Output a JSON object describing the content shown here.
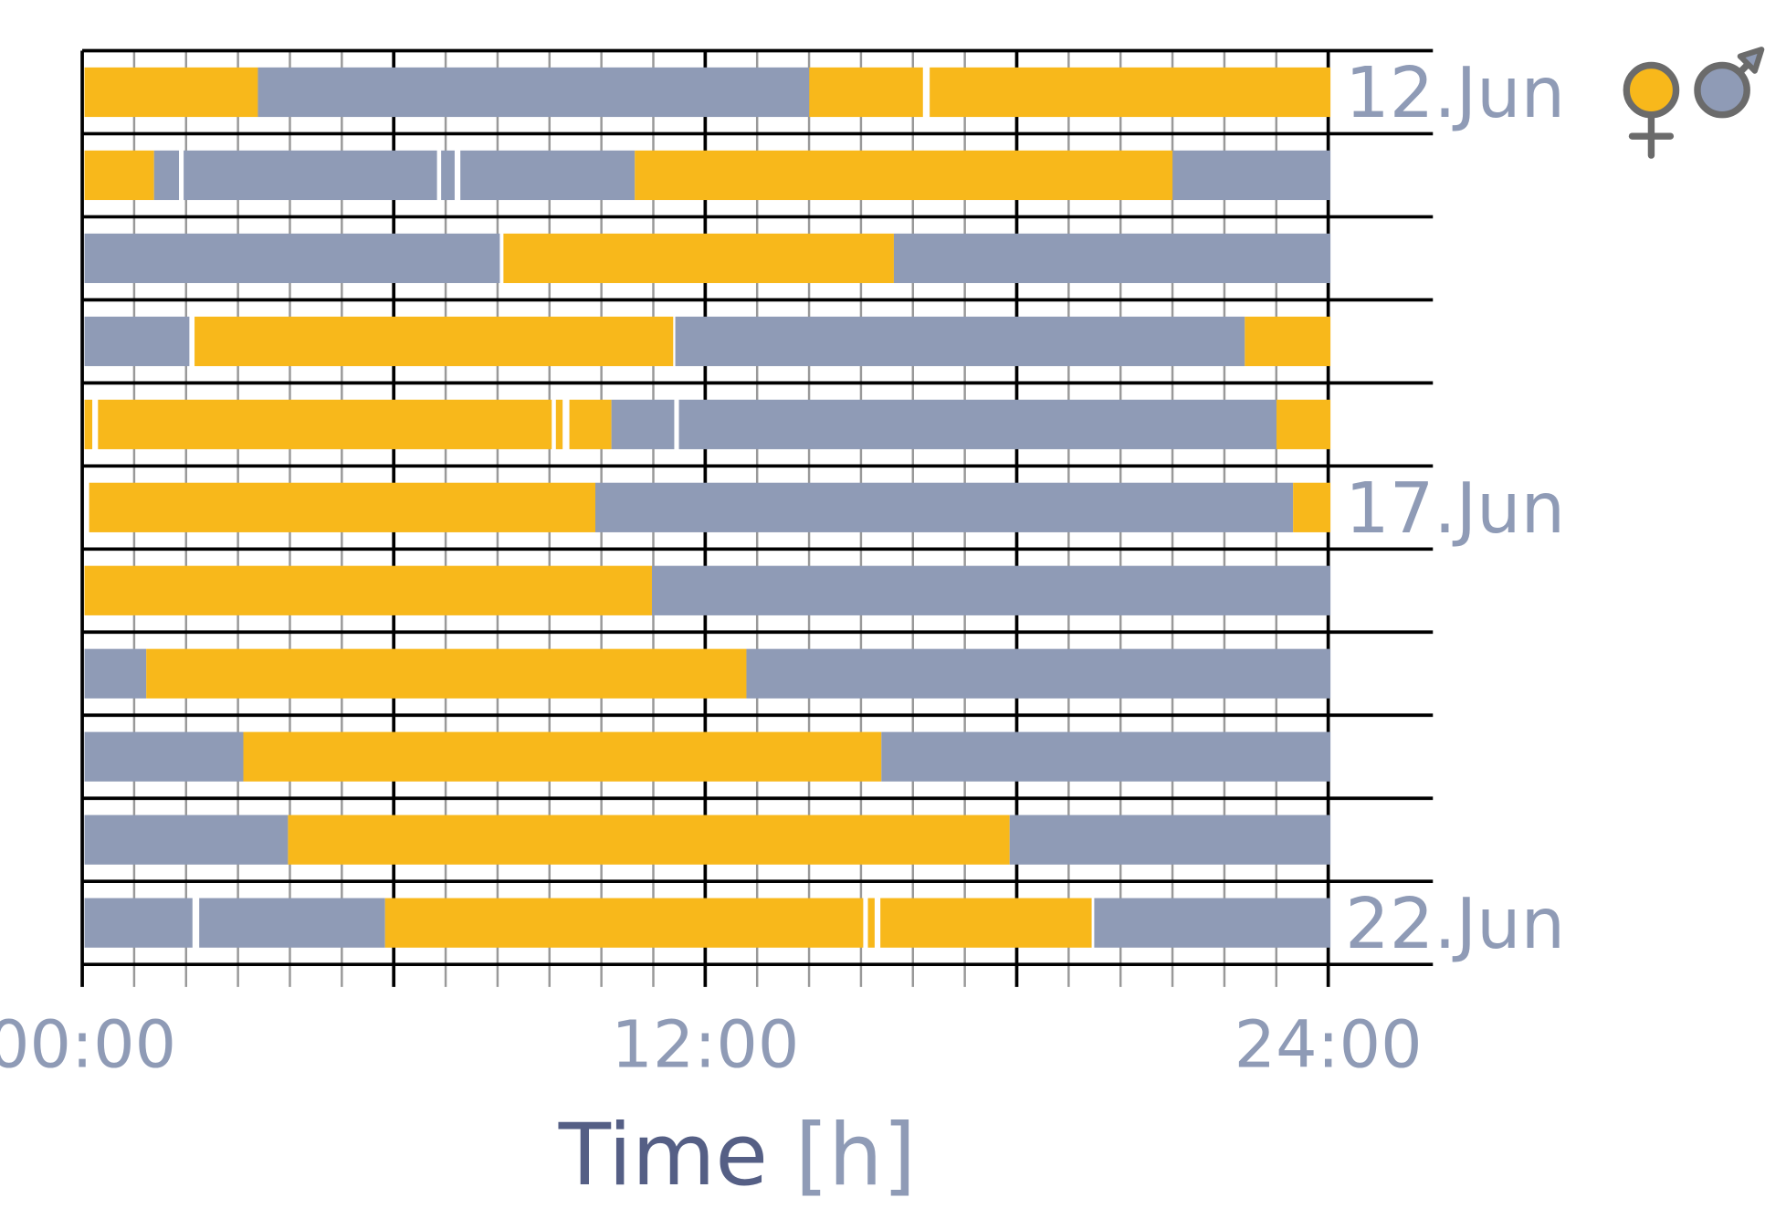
{
  "chart_data": {
    "type": "timeline",
    "xlabel_main": "Time",
    "xlabel_unit": "[h]",
    "xlim": [
      0,
      24
    ],
    "x_tick_labels": [
      {
        "value": 0,
        "label": "00:00"
      },
      {
        "value": 12,
        "label": "12:00"
      },
      {
        "value": 24,
        "label": "24:00"
      }
    ],
    "grid": {
      "minor_every_h": 1,
      "major_every_h": 6
    },
    "colors": {
      "female": "#F8B81B",
      "male": "#8F9BB6",
      "label": "#8F9BB6",
      "title": "#555F85"
    },
    "legend": {
      "placement": "top-right",
      "entries": [
        {
          "key": "female",
          "icon": "female-symbol-icon"
        },
        {
          "key": "male",
          "icon": "male-symbol-icon"
        }
      ]
    },
    "rows": [
      {
        "label": "12.Jun",
        "segments": [
          [
            "female",
            0,
            3.34
          ],
          [
            "male",
            3.34,
            13.96
          ],
          [
            "female",
            13.96,
            16.15
          ],
          [
            "female",
            16.28,
            24
          ]
        ]
      },
      {
        "label": "",
        "segments": [
          [
            "female",
            0,
            1.34
          ],
          [
            "male",
            1.34,
            1.82
          ],
          [
            "male",
            1.91,
            6.79
          ],
          [
            "male",
            6.87,
            7.13
          ],
          [
            "male",
            7.24,
            10.6
          ],
          [
            "female",
            10.6,
            20.96
          ],
          [
            "male",
            20.96,
            24
          ]
        ]
      },
      {
        "label": "",
        "segments": [
          [
            "male",
            0,
            8.0
          ],
          [
            "female",
            8.07,
            15.59
          ],
          [
            "male",
            15.59,
            24
          ]
        ]
      },
      {
        "label": "",
        "segments": [
          [
            "male",
            0,
            2.02
          ],
          [
            "female",
            2.12,
            11.34
          ],
          [
            "male",
            11.38,
            22.35
          ],
          [
            "female",
            22.35,
            24
          ]
        ]
      },
      {
        "label": "",
        "segments": [
          [
            "female",
            0,
            0.15
          ],
          [
            "female",
            0.26,
            9.0
          ],
          [
            "female",
            9.08,
            9.21
          ],
          [
            "female",
            9.34,
            10.15
          ],
          [
            "male",
            10.15,
            11.36
          ],
          [
            "male",
            11.45,
            22.96
          ],
          [
            "female",
            22.96,
            24
          ]
        ]
      },
      {
        "label": "17.Jun",
        "segments": [
          [
            "female",
            0.09,
            9.84
          ],
          [
            "male",
            9.84,
            23.28
          ],
          [
            "female",
            23.28,
            24
          ]
        ]
      },
      {
        "label": "",
        "segments": [
          [
            "female",
            0,
            10.93
          ],
          [
            "male",
            10.93,
            24
          ]
        ]
      },
      {
        "label": "",
        "segments": [
          [
            "male",
            0,
            1.19
          ],
          [
            "female",
            1.19,
            12.75
          ],
          [
            "male",
            12.75,
            24
          ]
        ]
      },
      {
        "label": "",
        "segments": [
          [
            "male",
            0,
            3.06
          ],
          [
            "female",
            3.06,
            15.35
          ],
          [
            "male",
            15.35,
            24
          ]
        ]
      },
      {
        "label": "",
        "segments": [
          [
            "male",
            0,
            3.92
          ],
          [
            "female",
            3.92,
            17.82
          ],
          [
            "male",
            17.82,
            24
          ]
        ]
      },
      {
        "label": "22.Jun",
        "segments": [
          [
            "male",
            0,
            2.08
          ],
          [
            "male",
            2.21,
            5.79
          ],
          [
            "female",
            5.79,
            15.0
          ],
          [
            "female",
            15.09,
            15.22
          ],
          [
            "female",
            15.33,
            19.4
          ],
          [
            "male",
            19.45,
            24
          ]
        ]
      }
    ]
  }
}
